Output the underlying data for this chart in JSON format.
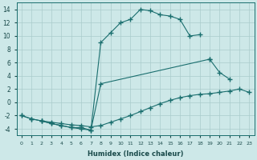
{
  "bg_color": "#cde8e8",
  "grid_color": "#aacccc",
  "line_color": "#1a6e6e",
  "line1_x": [
    0,
    1,
    2,
    3,
    4,
    5,
    6,
    7,
    8,
    9,
    10,
    11,
    12,
    13,
    14,
    15,
    16,
    17,
    18
  ],
  "line1_y": [
    -2.0,
    -2.5,
    -2.8,
    -3.2,
    -3.5,
    -3.8,
    -4.0,
    -4.2,
    9.0,
    10.5,
    12.0,
    12.5,
    14.0,
    13.8,
    13.2,
    13.0,
    12.5,
    10.0,
    10.2
  ],
  "line2_x": [
    2,
    3,
    4,
    5,
    6,
    7,
    8,
    19,
    20,
    21
  ],
  "line2_y": [
    -2.8,
    -3.2,
    -3.5,
    -3.8,
    -3.8,
    -4.2,
    2.8,
    6.5,
    4.5,
    3.5
  ],
  "line3_x": [
    0,
    1,
    2,
    3,
    4,
    5,
    6,
    7,
    8,
    9,
    10,
    11,
    12,
    13,
    14,
    15,
    16,
    17,
    18,
    19,
    20,
    21,
    22,
    23
  ],
  "line3_y": [
    -2.0,
    -2.5,
    -2.8,
    -3.0,
    -3.2,
    -3.4,
    -3.5,
    -3.7,
    -3.5,
    -3.0,
    -2.5,
    -2.0,
    -1.4,
    -0.8,
    -0.2,
    0.3,
    0.7,
    1.0,
    1.2,
    1.3,
    1.5,
    1.7,
    2.0,
    1.5
  ],
  "xlabel": "Humidex (Indice chaleur)",
  "xlim": [
    -0.5,
    23.5
  ],
  "ylim": [
    -5,
    15
  ],
  "yticks": [
    -4,
    -2,
    0,
    2,
    4,
    6,
    8,
    10,
    12,
    14
  ],
  "xticks": [
    0,
    1,
    2,
    3,
    4,
    5,
    6,
    7,
    8,
    9,
    10,
    11,
    12,
    13,
    14,
    15,
    16,
    17,
    18,
    19,
    20,
    21,
    22,
    23
  ]
}
